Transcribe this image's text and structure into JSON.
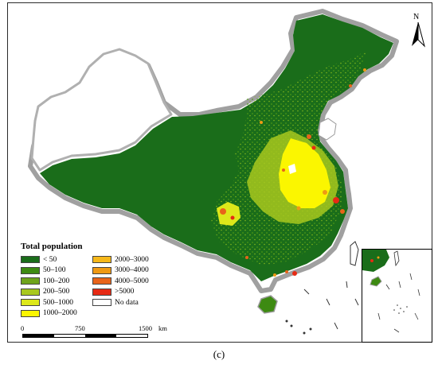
{
  "map": {
    "legend": {
      "title": "Total population",
      "items_left": [
        {
          "label": "< 50",
          "color": "#1a6d1a"
        },
        {
          "label": "50–100",
          "color": "#3d8a12"
        },
        {
          "label": "100–200",
          "color": "#6ea31c"
        },
        {
          "label": "200–500",
          "color": "#a8c81e"
        },
        {
          "label": "500–1000",
          "color": "#dde81a"
        },
        {
          "label": "1000–2000",
          "color": "#fbf600"
        }
      ],
      "items_right": [
        {
          "label": "2000–3000",
          "color": "#f6b81a"
        },
        {
          "label": "3000–4000",
          "color": "#ef9a14"
        },
        {
          "label": "4000–5000",
          "color": "#e8641a"
        },
        {
          "label": ">5000",
          "color": "#e62a14"
        },
        {
          "label": "No data",
          "color": "#ffffff"
        }
      ]
    },
    "scale_bar": {
      "labels": [
        "0",
        "750",
        "1500"
      ],
      "unit": "km"
    },
    "north_arrow": {
      "label": "N",
      "icon": "north-arrow-icon"
    },
    "caption": "(c)",
    "colors": {
      "border": "#9a9a9a",
      "no_data": "#ffffff"
    }
  }
}
